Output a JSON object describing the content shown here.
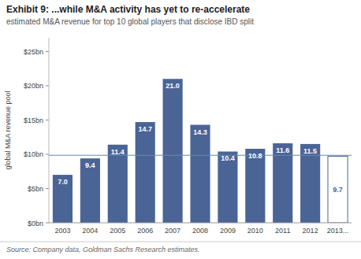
{
  "chart_data": {
    "type": "bar",
    "title": "Exhibit 9: ...while M&A activity has yet to re-accelerate",
    "subtitle": "estimated M&A revenue for top 10 global players that disclose IBD split",
    "y_label": "global M&A revenue pool",
    "source": "Source: Company data, Goldman Sachs Research estimates.",
    "categories": [
      "2003",
      "2004",
      "2005",
      "2006",
      "2007",
      "2008",
      "2009",
      "2010",
      "2011",
      "2012",
      "2013..."
    ],
    "values": [
      7.0,
      9.4,
      11.4,
      14.7,
      21.0,
      14.3,
      10.4,
      10.8,
      11.6,
      11.5,
      9.7
    ],
    "value_labels": [
      "7.0",
      "9.4",
      "11.4",
      "14.7",
      "21.0",
      "14.3",
      "10.4",
      "10.8",
      "11.6",
      "11.5",
      "9.7"
    ],
    "data_labels": true,
    "colors": [
      "#4a6496",
      "#4a6496",
      "#4a6496",
      "#4a6496",
      "#4a6496",
      "#4a6496",
      "#4a6496",
      "#4a6496",
      "#4a6496",
      "#4a6496",
      "#ffffff"
    ],
    "edge_colors": [
      null,
      null,
      null,
      null,
      null,
      null,
      null,
      null,
      null,
      null,
      "#4a6496"
    ],
    "reference_line": {
      "value": 9.85,
      "color": "#6688aa"
    },
    "ylim": [
      0,
      27
    ],
    "yticks": [
      {
        "value": 0,
        "label": "$0bn"
      },
      {
        "value": 5,
        "label": "$5bn"
      },
      {
        "value": 10,
        "label": "$10bn"
      },
      {
        "value": 15,
        "label": "$15bn"
      },
      {
        "value": 20,
        "label": "$20bn"
      },
      {
        "value": 25,
        "label": "$25bn"
      }
    ],
    "grid": false
  }
}
